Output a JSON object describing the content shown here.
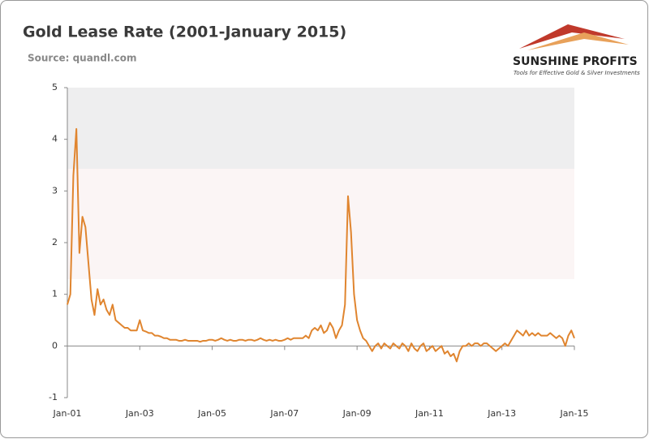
{
  "chart_data": {
    "type": "line",
    "title": "Gold Lease Rate (2001-January 2015)",
    "subtitle": "Source: quandl.com",
    "brand": "SUNSHINE PROFITS",
    "tagline": "Tools for Effective Gold & Silver Investments",
    "x": [
      "Jan-01",
      "Feb-01",
      "Mar-01",
      "Apr-01",
      "May-01",
      "Jun-01",
      "Jul-01",
      "Aug-01",
      "Sep-01",
      "Oct-01",
      "Nov-01",
      "Dec-01",
      "Jan-02",
      "Feb-02",
      "Mar-02",
      "Apr-02",
      "May-02",
      "Jun-02",
      "Jul-02",
      "Aug-02",
      "Sep-02",
      "Oct-02",
      "Nov-02",
      "Dec-02",
      "Jan-03",
      "Feb-03",
      "Mar-03",
      "Apr-03",
      "May-03",
      "Jun-03",
      "Jul-03",
      "Aug-03",
      "Sep-03",
      "Oct-03",
      "Nov-03",
      "Dec-03",
      "Jan-04",
      "Feb-04",
      "Mar-04",
      "Apr-04",
      "May-04",
      "Jun-04",
      "Jul-04",
      "Aug-04",
      "Sep-04",
      "Oct-04",
      "Nov-04",
      "Dec-04",
      "Jan-05",
      "Feb-05",
      "Mar-05",
      "Apr-05",
      "May-05",
      "Jun-05",
      "Jul-05",
      "Aug-05",
      "Sep-05",
      "Oct-05",
      "Nov-05",
      "Dec-05",
      "Jan-06",
      "Feb-06",
      "Mar-06",
      "Apr-06",
      "May-06",
      "Jun-06",
      "Jul-06",
      "Aug-06",
      "Sep-06",
      "Oct-06",
      "Nov-06",
      "Dec-06",
      "Jan-07",
      "Feb-07",
      "Mar-07",
      "Apr-07",
      "May-07",
      "Jun-07",
      "Jul-07",
      "Aug-07",
      "Sep-07",
      "Oct-07",
      "Nov-07",
      "Dec-07",
      "Jan-08",
      "Feb-08",
      "Mar-08",
      "Apr-08",
      "May-08",
      "Jun-08",
      "Jul-08",
      "Aug-08",
      "Sep-08",
      "Oct-08",
      "Nov-08",
      "Dec-08",
      "Jan-09",
      "Feb-09",
      "Mar-09",
      "Apr-09",
      "May-09",
      "Jun-09",
      "Jul-09",
      "Aug-09",
      "Sep-09",
      "Oct-09",
      "Nov-09",
      "Dec-09",
      "Jan-10",
      "Feb-10",
      "Mar-10",
      "Apr-10",
      "May-10",
      "Jun-10",
      "Jul-10",
      "Aug-10",
      "Sep-10",
      "Oct-10",
      "Nov-10",
      "Dec-10",
      "Jan-11",
      "Feb-11",
      "Mar-11",
      "Apr-11",
      "May-11",
      "Jun-11",
      "Jul-11",
      "Aug-11",
      "Sep-11",
      "Oct-11",
      "Nov-11",
      "Dec-11",
      "Jan-12",
      "Feb-12",
      "Mar-12",
      "Apr-12",
      "May-12",
      "Jun-12",
      "Jul-12",
      "Aug-12",
      "Sep-12",
      "Oct-12",
      "Nov-12",
      "Dec-12",
      "Jan-13",
      "Feb-13",
      "Mar-13",
      "Apr-13",
      "May-13",
      "Jun-13",
      "Jul-13",
      "Aug-13",
      "Sep-13",
      "Oct-13",
      "Nov-13",
      "Dec-13",
      "Jan-14",
      "Feb-14",
      "Mar-14",
      "Apr-14",
      "May-14",
      "Jun-14",
      "Jul-14",
      "Aug-14",
      "Sep-14",
      "Oct-14",
      "Nov-14",
      "Dec-14",
      "Jan-15"
    ],
    "series": [
      {
        "color": "#e0852f",
        "values": [
          0.8,
          1.0,
          3.3,
          4.2,
          1.8,
          2.5,
          2.3,
          1.6,
          0.9,
          0.6,
          1.1,
          0.8,
          0.9,
          0.7,
          0.6,
          0.8,
          0.5,
          0.45,
          0.4,
          0.35,
          0.35,
          0.3,
          0.3,
          0.3,
          0.5,
          0.3,
          0.28,
          0.25,
          0.25,
          0.2,
          0.2,
          0.18,
          0.15,
          0.15,
          0.12,
          0.12,
          0.12,
          0.1,
          0.1,
          0.12,
          0.1,
          0.1,
          0.1,
          0.1,
          0.08,
          0.1,
          0.1,
          0.12,
          0.12,
          0.1,
          0.12,
          0.15,
          0.12,
          0.1,
          0.12,
          0.1,
          0.1,
          0.12,
          0.12,
          0.1,
          0.12,
          0.12,
          0.1,
          0.12,
          0.15,
          0.12,
          0.1,
          0.12,
          0.1,
          0.12,
          0.1,
          0.1,
          0.12,
          0.15,
          0.12,
          0.15,
          0.15,
          0.15,
          0.15,
          0.2,
          0.15,
          0.3,
          0.35,
          0.3,
          0.4,
          0.25,
          0.3,
          0.45,
          0.35,
          0.15,
          0.3,
          0.4,
          0.8,
          2.9,
          2.2,
          1.0,
          0.5,
          0.3,
          0.15,
          0.1,
          0.0,
          -0.1,
          0.0,
          0.05,
          -0.05,
          0.05,
          0.0,
          -0.05,
          0.05,
          0.0,
          -0.05,
          0.05,
          0.0,
          -0.1,
          0.05,
          -0.05,
          -0.1,
          0.0,
          0.05,
          -0.1,
          -0.05,
          0.0,
          -0.1,
          -0.05,
          0.0,
          -0.15,
          -0.1,
          -0.2,
          -0.15,
          -0.3,
          -0.1,
          0.0,
          0.0,
          0.05,
          0.0,
          0.05,
          0.05,
          0.0,
          0.05,
          0.05,
          0.0,
          -0.05,
          -0.1,
          -0.05,
          0.0,
          0.05,
          0.0,
          0.1,
          0.2,
          0.3,
          0.25,
          0.2,
          0.3,
          0.2,
          0.25,
          0.2,
          0.25,
          0.2,
          0.2,
          0.2,
          0.25,
          0.2,
          0.15,
          0.2,
          0.15,
          0.0,
          0.2,
          0.3,
          0.15
        ]
      }
    ],
    "xticks": [
      "Jan-01",
      "Jan-03",
      "Jan-05",
      "Jan-07",
      "Jan-09",
      "Jan-11",
      "Jan-13",
      "Jan-15"
    ],
    "ylim": [
      -1,
      5
    ],
    "yticks": [
      -1,
      0,
      1,
      2,
      3,
      4,
      5
    ]
  }
}
